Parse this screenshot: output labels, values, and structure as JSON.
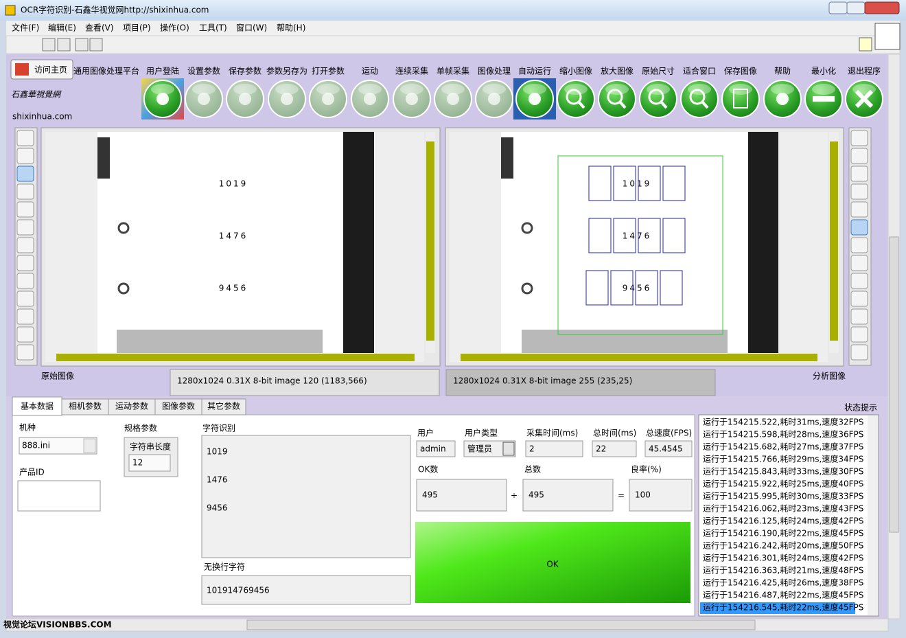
{
  "window": {
    "title": "OCR字符识别-石鑫华视觉网http://shixinhua.com"
  },
  "menu": [
    "文件(F)",
    "编辑(E)",
    "查看(V)",
    "项目(P)",
    "操作(O)",
    "工具(T)",
    "窗口(W)",
    "帮助(H)"
  ],
  "home_button": "访问主页",
  "toolbar": [
    "通用图像处理平台",
    "用户登陆",
    "设置参数",
    "保存参数",
    "参数另存为",
    "打开参数",
    "运动",
    "连续采集",
    "单帧采集",
    "图像处理",
    "自动运行",
    "缩小图像",
    "放大图像",
    "原始尺寸",
    "适合窗口",
    "保存图像",
    "帮助",
    "最小化",
    "退出程序"
  ],
  "logo": {
    "chinese": "石鑫華視覺網",
    "domain": "shixinhua.com"
  },
  "images": {
    "left": {
      "label": "原始图像",
      "digits": [
        "1019",
        "1476",
        "9456"
      ],
      "info": "1280x1024 0.31X 8-bit image 120",
      "coords": "(1183,566)"
    },
    "right": {
      "label": "分析图像",
      "digits": [
        "1019",
        "1476",
        "9456"
      ],
      "info": "1280x1024 0.31X 8-bit image 255",
      "coords": "(235,25)"
    }
  },
  "tabs": [
    "基本数据",
    "相机参数",
    "运动参数",
    "图像参数",
    "其它参数"
  ],
  "basic": {
    "model_label": "机种",
    "model_value": "888.ini",
    "spec_label": "规格参数",
    "length_label": "字符串长度",
    "length_value": "12",
    "product_id_label": "产品ID",
    "ocr_label": "字符识别",
    "ocr_lines": [
      "1019",
      "1476",
      "9456"
    ],
    "flat_label": "无换行字符",
    "flat_value": "101914769456",
    "user_label": "用户",
    "user_value": "admin",
    "user_type_label": "用户类型",
    "user_type_value": "管理员",
    "acq_label": "采集时间(ms)",
    "acq_value": "2",
    "total_time_label": "总时间(ms)",
    "total_time_value": "22",
    "fps_label": "总速度(FPS)",
    "fps_value": "45.4545",
    "ok_count_label": "OK数",
    "ok_count_value": "495",
    "divide": "÷",
    "total_label": "总数",
    "total_value": "495",
    "equals": "=",
    "yield_label": "良率(%)",
    "yield_value": "100",
    "result": "OK"
  },
  "status": {
    "title": "状态提示",
    "log": [
      "运行于154215.522,耗时31ms,速度32FPS",
      "运行于154215.598,耗时28ms,速度36FPS",
      "运行于154215.682,耗时27ms,速度37FPS",
      "运行于154215.766,耗时29ms,速度34FPS",
      "运行于154215.843,耗时33ms,速度30FPS",
      "运行于154215.922,耗时25ms,速度40FPS",
      "运行于154215.995,耗时30ms,速度33FPS",
      "运行于154216.062,耗时23ms,速度43FPS",
      "运行于154216.125,耗时24ms,速度42FPS",
      "运行于154216.190,耗时22ms,速度45FPS",
      "运行于154216.242,耗时20ms,速度50FPS",
      "运行于154216.301,耗时24ms,速度42FPS",
      "运行于154216.363,耗时21ms,速度48FPS",
      "运行于154216.425,耗时26ms,速度38FPS",
      "运行于154216.487,耗时22ms,速度45FPS",
      "运行于154216.545,耗时22ms,速度45FPS"
    ]
  },
  "watermark": "视觉论坛VISIONBBS.COM"
}
